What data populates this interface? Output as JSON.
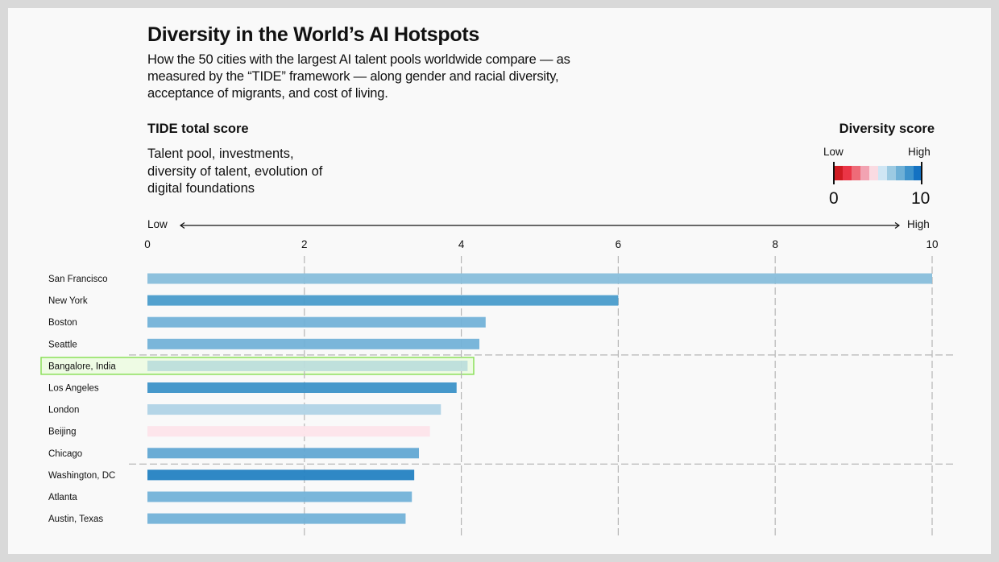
{
  "header": {
    "title": "Diversity in the World’s AI Hotspots",
    "subtitle": "How the 50 cities with the largest AI talent pools worldwide compare — as measured by the “TIDE” framework — along gender and racial diversity, acceptance of migrants, and cost of living."
  },
  "tide": {
    "heading": "TIDE total score",
    "description": "Talent pool, investments, diversity of talent, evolution of digital foundations"
  },
  "legend": {
    "title": "Diversity score",
    "low_label": "Low",
    "high_label": "High",
    "min": "0",
    "max": "10",
    "colors": [
      "#cf1b22",
      "#ea3546",
      "#ee6b78",
      "#f2a3b2",
      "#fadbe2",
      "#cfe6f4",
      "#9ccae2",
      "#6eb0d6",
      "#3d92cb",
      "#1472c2"
    ]
  },
  "axis": {
    "low_label": "Low",
    "high_label": "High"
  },
  "highlight": {
    "city": "Bangalore, India",
    "border_color": "#8be05a",
    "fill_color": "#eefbe4"
  },
  "chart_data": {
    "type": "bar",
    "orientation": "horizontal",
    "title": "Diversity in the World’s AI Hotspots",
    "xlabel": "TIDE total score",
    "xlim": [
      0,
      10
    ],
    "xticks": [
      0,
      2,
      4,
      6,
      8,
      10
    ],
    "grid": "vertical dashed",
    "group_separators_after": [
      "Seattle",
      "Chicago"
    ],
    "categories": [
      "San Francisco",
      "New York",
      "Boston",
      "Seattle",
      "Bangalore, India",
      "Los Angeles",
      "London",
      "Beijing",
      "Chicago",
      "Washington, DC",
      "Atlanta",
      "Austin, Texas"
    ],
    "values": [
      10.0,
      6.0,
      4.31,
      4.23,
      4.08,
      3.94,
      3.74,
      3.6,
      3.46,
      3.4,
      3.37,
      3.29
    ],
    "colors": [
      "#88bedb",
      "#4a9ccb",
      "#73b2d8",
      "#73b2d8",
      "#bcdedb",
      "#3c92c8",
      "#b0d3e6",
      "#fde4ea",
      "#62a8d3",
      "#2482c2",
      "#73b2d8",
      "#73b2d8"
    ],
    "color_encodes": "Diversity score (0 low = red, 10 high = blue)"
  }
}
